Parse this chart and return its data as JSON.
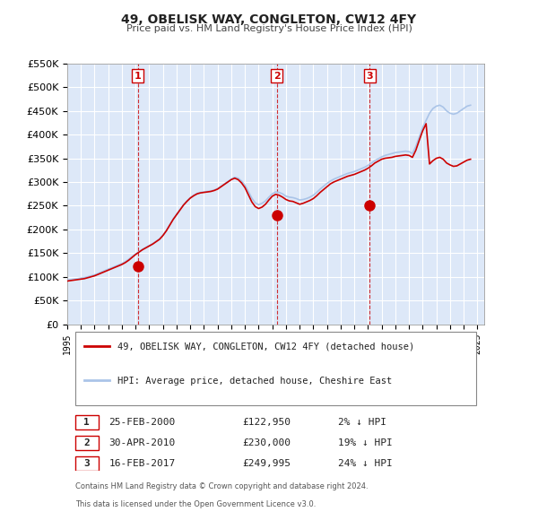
{
  "title": "49, OBELISK WAY, CONGLETON, CW12 4FY",
  "subtitle": "Price paid vs. HM Land Registry's House Price Index (HPI)",
  "xlabel": "",
  "ylabel": "",
  "ylim": [
    0,
    550000
  ],
  "yticks": [
    0,
    50000,
    100000,
    150000,
    200000,
    250000,
    300000,
    350000,
    400000,
    450000,
    500000,
    550000
  ],
  "ytick_labels": [
    "£0",
    "£50K",
    "£100K",
    "£150K",
    "£200K",
    "£250K",
    "£300K",
    "£350K",
    "£400K",
    "£450K",
    "£500K",
    "£550K"
  ],
  "xlim_start": 1995.0,
  "xlim_end": 2025.5,
  "background_color": "#ffffff",
  "plot_bg_color": "#dde8f8",
  "grid_color": "#ffffff",
  "hpi_color": "#aac4e8",
  "price_color": "#cc0000",
  "sale_marker_color": "#cc0000",
  "sale_marker_size": 8,
  "legend_label_price": "49, OBELISK WAY, CONGLETON, CW12 4FY (detached house)",
  "legend_label_hpi": "HPI: Average price, detached house, Cheshire East",
  "sales": [
    {
      "num": 1,
      "date": 2000.15,
      "price": 122950,
      "label": "25-FEB-2000",
      "price_label": "£122,950",
      "pct": "2% ↓ HPI"
    },
    {
      "num": 2,
      "date": 2010.33,
      "price": 230000,
      "label": "30-APR-2010",
      "price_label": "£230,000",
      "pct": "19% ↓ HPI"
    },
    {
      "num": 3,
      "date": 2017.12,
      "price": 249995,
      "label": "16-FEB-2017",
      "price_label": "£249,995",
      "pct": "24% ↓ HPI"
    }
  ],
  "footnote1": "Contains HM Land Registry data © Crown copyright and database right 2024.",
  "footnote2": "This data is licensed under the Open Government Licence v3.0.",
  "hpi_data_x": [
    1995.0,
    1995.25,
    1995.5,
    1995.75,
    1996.0,
    1996.25,
    1996.5,
    1996.75,
    1997.0,
    1997.25,
    1997.5,
    1997.75,
    1998.0,
    1998.25,
    1998.5,
    1998.75,
    1999.0,
    1999.25,
    1999.5,
    1999.75,
    2000.0,
    2000.25,
    2000.5,
    2000.75,
    2001.0,
    2001.25,
    2001.5,
    2001.75,
    2002.0,
    2002.25,
    2002.5,
    2002.75,
    2003.0,
    2003.25,
    2003.5,
    2003.75,
    2004.0,
    2004.25,
    2004.5,
    2004.75,
    2005.0,
    2005.25,
    2005.5,
    2005.75,
    2006.0,
    2006.25,
    2006.5,
    2006.75,
    2007.0,
    2007.25,
    2007.5,
    2007.75,
    2008.0,
    2008.25,
    2008.5,
    2008.75,
    2009.0,
    2009.25,
    2009.5,
    2009.75,
    2010.0,
    2010.25,
    2010.5,
    2010.75,
    2011.0,
    2011.25,
    2011.5,
    2011.75,
    2012.0,
    2012.25,
    2012.5,
    2012.75,
    2013.0,
    2013.25,
    2013.5,
    2013.75,
    2014.0,
    2014.25,
    2014.5,
    2014.75,
    2015.0,
    2015.25,
    2015.5,
    2015.75,
    2016.0,
    2016.25,
    2016.5,
    2016.75,
    2017.0,
    2017.25,
    2017.5,
    2017.75,
    2018.0,
    2018.25,
    2018.5,
    2018.75,
    2019.0,
    2019.25,
    2019.5,
    2019.75,
    2020.0,
    2020.25,
    2020.5,
    2020.75,
    2021.0,
    2021.25,
    2021.5,
    2021.75,
    2022.0,
    2022.25,
    2022.5,
    2022.75,
    2023.0,
    2023.25,
    2023.5,
    2023.75,
    2024.0,
    2024.25,
    2024.5
  ],
  "hpi_data_y": [
    93000,
    94000,
    95000,
    96000,
    97000,
    98000,
    100000,
    102000,
    104000,
    107000,
    110000,
    113000,
    116000,
    119000,
    122000,
    125000,
    128000,
    132000,
    137000,
    143000,
    148000,
    153000,
    158000,
    162000,
    166000,
    170000,
    175000,
    180000,
    188000,
    198000,
    210000,
    222000,
    232000,
    242000,
    252000,
    260000,
    267000,
    272000,
    276000,
    278000,
    279000,
    280000,
    281000,
    283000,
    286000,
    291000,
    296000,
    301000,
    306000,
    310000,
    308000,
    302000,
    293000,
    280000,
    266000,
    256000,
    252000,
    255000,
    260000,
    268000,
    275000,
    279000,
    278000,
    275000,
    270000,
    268000,
    267000,
    265000,
    262000,
    263000,
    265000,
    268000,
    272000,
    278000,
    285000,
    291000,
    297000,
    302000,
    306000,
    309000,
    312000,
    315000,
    318000,
    320000,
    322000,
    325000,
    328000,
    331000,
    335000,
    340000,
    345000,
    349000,
    353000,
    356000,
    358000,
    360000,
    362000,
    363000,
    364000,
    365000,
    364000,
    360000,
    375000,
    395000,
    415000,
    430000,
    445000,
    455000,
    460000,
    462000,
    458000,
    450000,
    445000,
    443000,
    445000,
    450000,
    455000,
    460000,
    462000
  ],
  "price_data_x": [
    1995.0,
    1995.25,
    1995.5,
    1995.75,
    1996.0,
    1996.25,
    1996.5,
    1996.75,
    1997.0,
    1997.25,
    1997.5,
    1997.75,
    1998.0,
    1998.25,
    1998.5,
    1998.75,
    1999.0,
    1999.25,
    1999.5,
    1999.75,
    2000.0,
    2000.25,
    2000.5,
    2000.75,
    2001.0,
    2001.25,
    2001.5,
    2001.75,
    2002.0,
    2002.25,
    2002.5,
    2002.75,
    2003.0,
    2003.25,
    2003.5,
    2003.75,
    2004.0,
    2004.25,
    2004.5,
    2004.75,
    2005.0,
    2005.25,
    2005.5,
    2005.75,
    2006.0,
    2006.25,
    2006.5,
    2006.75,
    2007.0,
    2007.25,
    2007.5,
    2007.75,
    2008.0,
    2008.25,
    2008.5,
    2008.75,
    2009.0,
    2009.25,
    2009.5,
    2009.75,
    2010.0,
    2010.25,
    2010.5,
    2010.75,
    2011.0,
    2011.25,
    2011.5,
    2011.75,
    2012.0,
    2012.25,
    2012.5,
    2012.75,
    2013.0,
    2013.25,
    2013.5,
    2013.75,
    2014.0,
    2014.25,
    2014.5,
    2014.75,
    2015.0,
    2015.25,
    2015.5,
    2015.75,
    2016.0,
    2016.25,
    2016.5,
    2016.75,
    2017.0,
    2017.25,
    2017.5,
    2017.75,
    2018.0,
    2018.25,
    2018.5,
    2018.75,
    2019.0,
    2019.25,
    2019.5,
    2019.75,
    2020.0,
    2020.25,
    2020.5,
    2020.75,
    2021.0,
    2021.25,
    2021.5,
    2021.75,
    2022.0,
    2022.25,
    2022.5,
    2022.75,
    2023.0,
    2023.25,
    2023.5,
    2023.75,
    2024.0,
    2024.25,
    2024.5
  ],
  "price_data_y": [
    91000,
    92000,
    93000,
    94000,
    95000,
    96000,
    98000,
    100000,
    102000,
    105000,
    108000,
    111000,
    114000,
    117000,
    120000,
    123000,
    126000,
    130000,
    135000,
    141000,
    147000,
    152000,
    157000,
    161000,
    165000,
    169000,
    174000,
    179000,
    187000,
    197000,
    209000,
    221000,
    231000,
    241000,
    251000,
    259000,
    266000,
    271000,
    275000,
    277000,
    278000,
    279000,
    280000,
    282000,
    285000,
    290000,
    295000,
    300000,
    305000,
    308000,
    305000,
    298000,
    288000,
    273000,
    258000,
    248000,
    244000,
    247000,
    253000,
    262000,
    270000,
    274000,
    272000,
    268000,
    263000,
    260000,
    259000,
    256000,
    253000,
    255000,
    258000,
    261000,
    265000,
    271000,
    278000,
    284000,
    290000,
    296000,
    300000,
    303000,
    306000,
    309000,
    312000,
    314000,
    316000,
    319000,
    322000,
    325000,
    329000,
    334000,
    340000,
    344000,
    348000,
    350000,
    351000,
    352000,
    354000,
    355000,
    356000,
    357000,
    356000,
    352000,
    367000,
    388000,
    408000,
    423000,
    338000,
    345000,
    350000,
    352000,
    348000,
    340000,
    336000,
    333000,
    334000,
    338000,
    342000,
    346000,
    348000
  ]
}
